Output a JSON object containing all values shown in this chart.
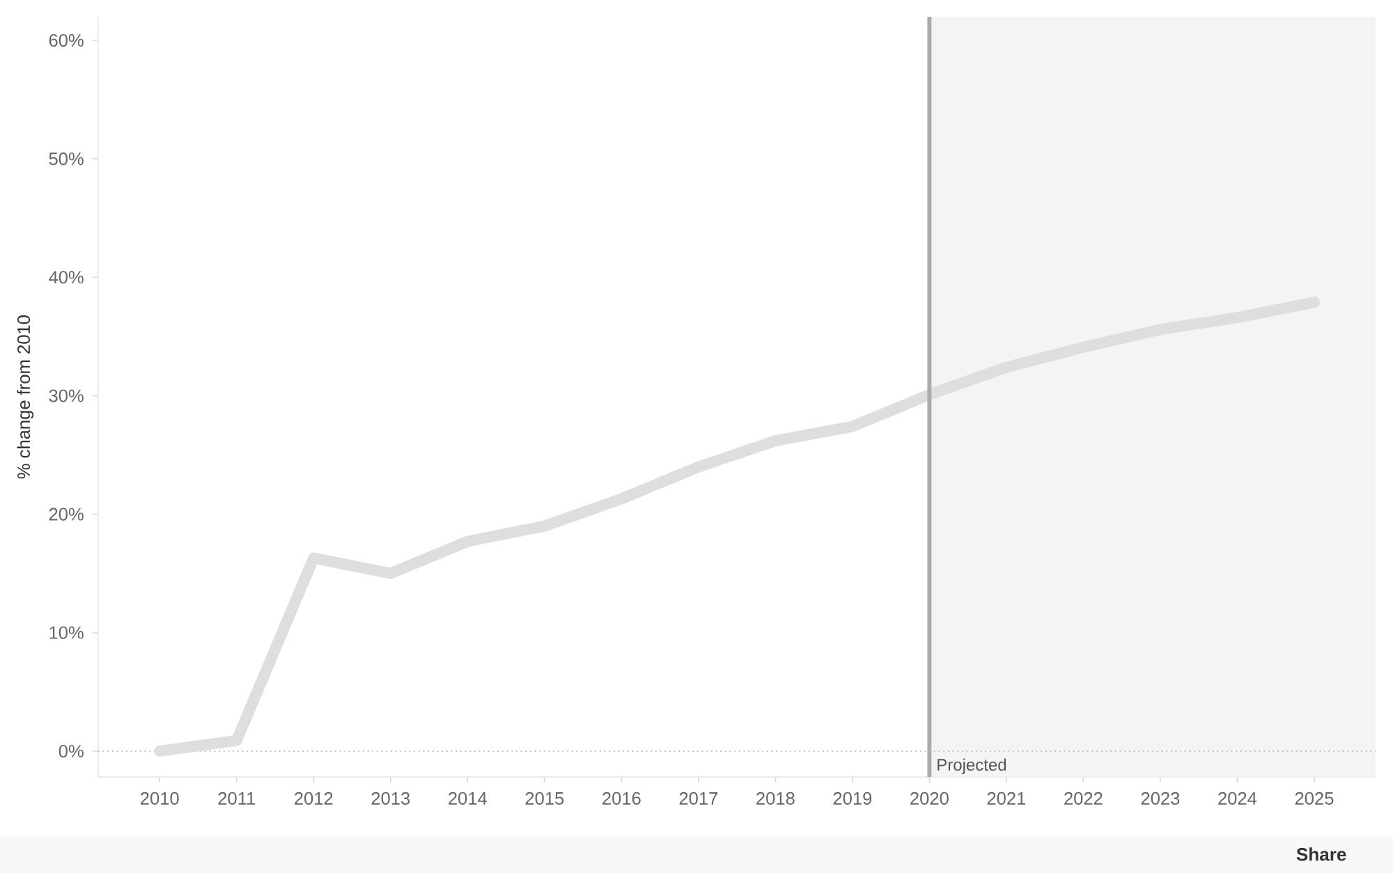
{
  "chart_data": {
    "type": "line",
    "ylabel": "% change from 2010",
    "x": [
      2010,
      2011,
      2012,
      2013,
      2014,
      2015,
      2016,
      2017,
      2018,
      2019,
      2020,
      2021,
      2022,
      2023,
      2024,
      2025
    ],
    "values": [
      0.0,
      0.9,
      16.3,
      15.0,
      17.7,
      19.0,
      21.3,
      24.0,
      26.2,
      27.4,
      30.1,
      32.4,
      34.1,
      35.6,
      36.6,
      37.9
    ],
    "color": "#dedede",
    "line_style": "solid",
    "xlim": [
      2009.2,
      2025.8
    ],
    "xticks": [
      2010,
      2011,
      2012,
      2013,
      2014,
      2015,
      2016,
      2017,
      2018,
      2019,
      2020,
      2021,
      2022,
      2023,
      2024,
      2025
    ],
    "ylim": [
      -2.2,
      62
    ],
    "yticks": [
      {
        "value": 0,
        "label": "0%"
      },
      {
        "value": 10,
        "label": "10%"
      },
      {
        "value": 20,
        "label": "20%"
      },
      {
        "value": 30,
        "label": "30%"
      },
      {
        "value": 40,
        "label": "40%"
      },
      {
        "value": 50,
        "label": "50%"
      },
      {
        "value": 60,
        "label": "60%"
      }
    ],
    "ref_lines": [
      {
        "axis": "x",
        "value": 2020,
        "label": "Projected",
        "color": "#ababab",
        "line_style": "solid"
      },
      {
        "axis": "y",
        "value": 0,
        "color": "#c6c6c6",
        "line_style": "dotted"
      }
    ],
    "bands": [
      {
        "axis": "x",
        "from": 2020,
        "to": 2025.8,
        "color": "#f4f4f4"
      }
    ],
    "annotations": [
      "Share"
    ]
  }
}
